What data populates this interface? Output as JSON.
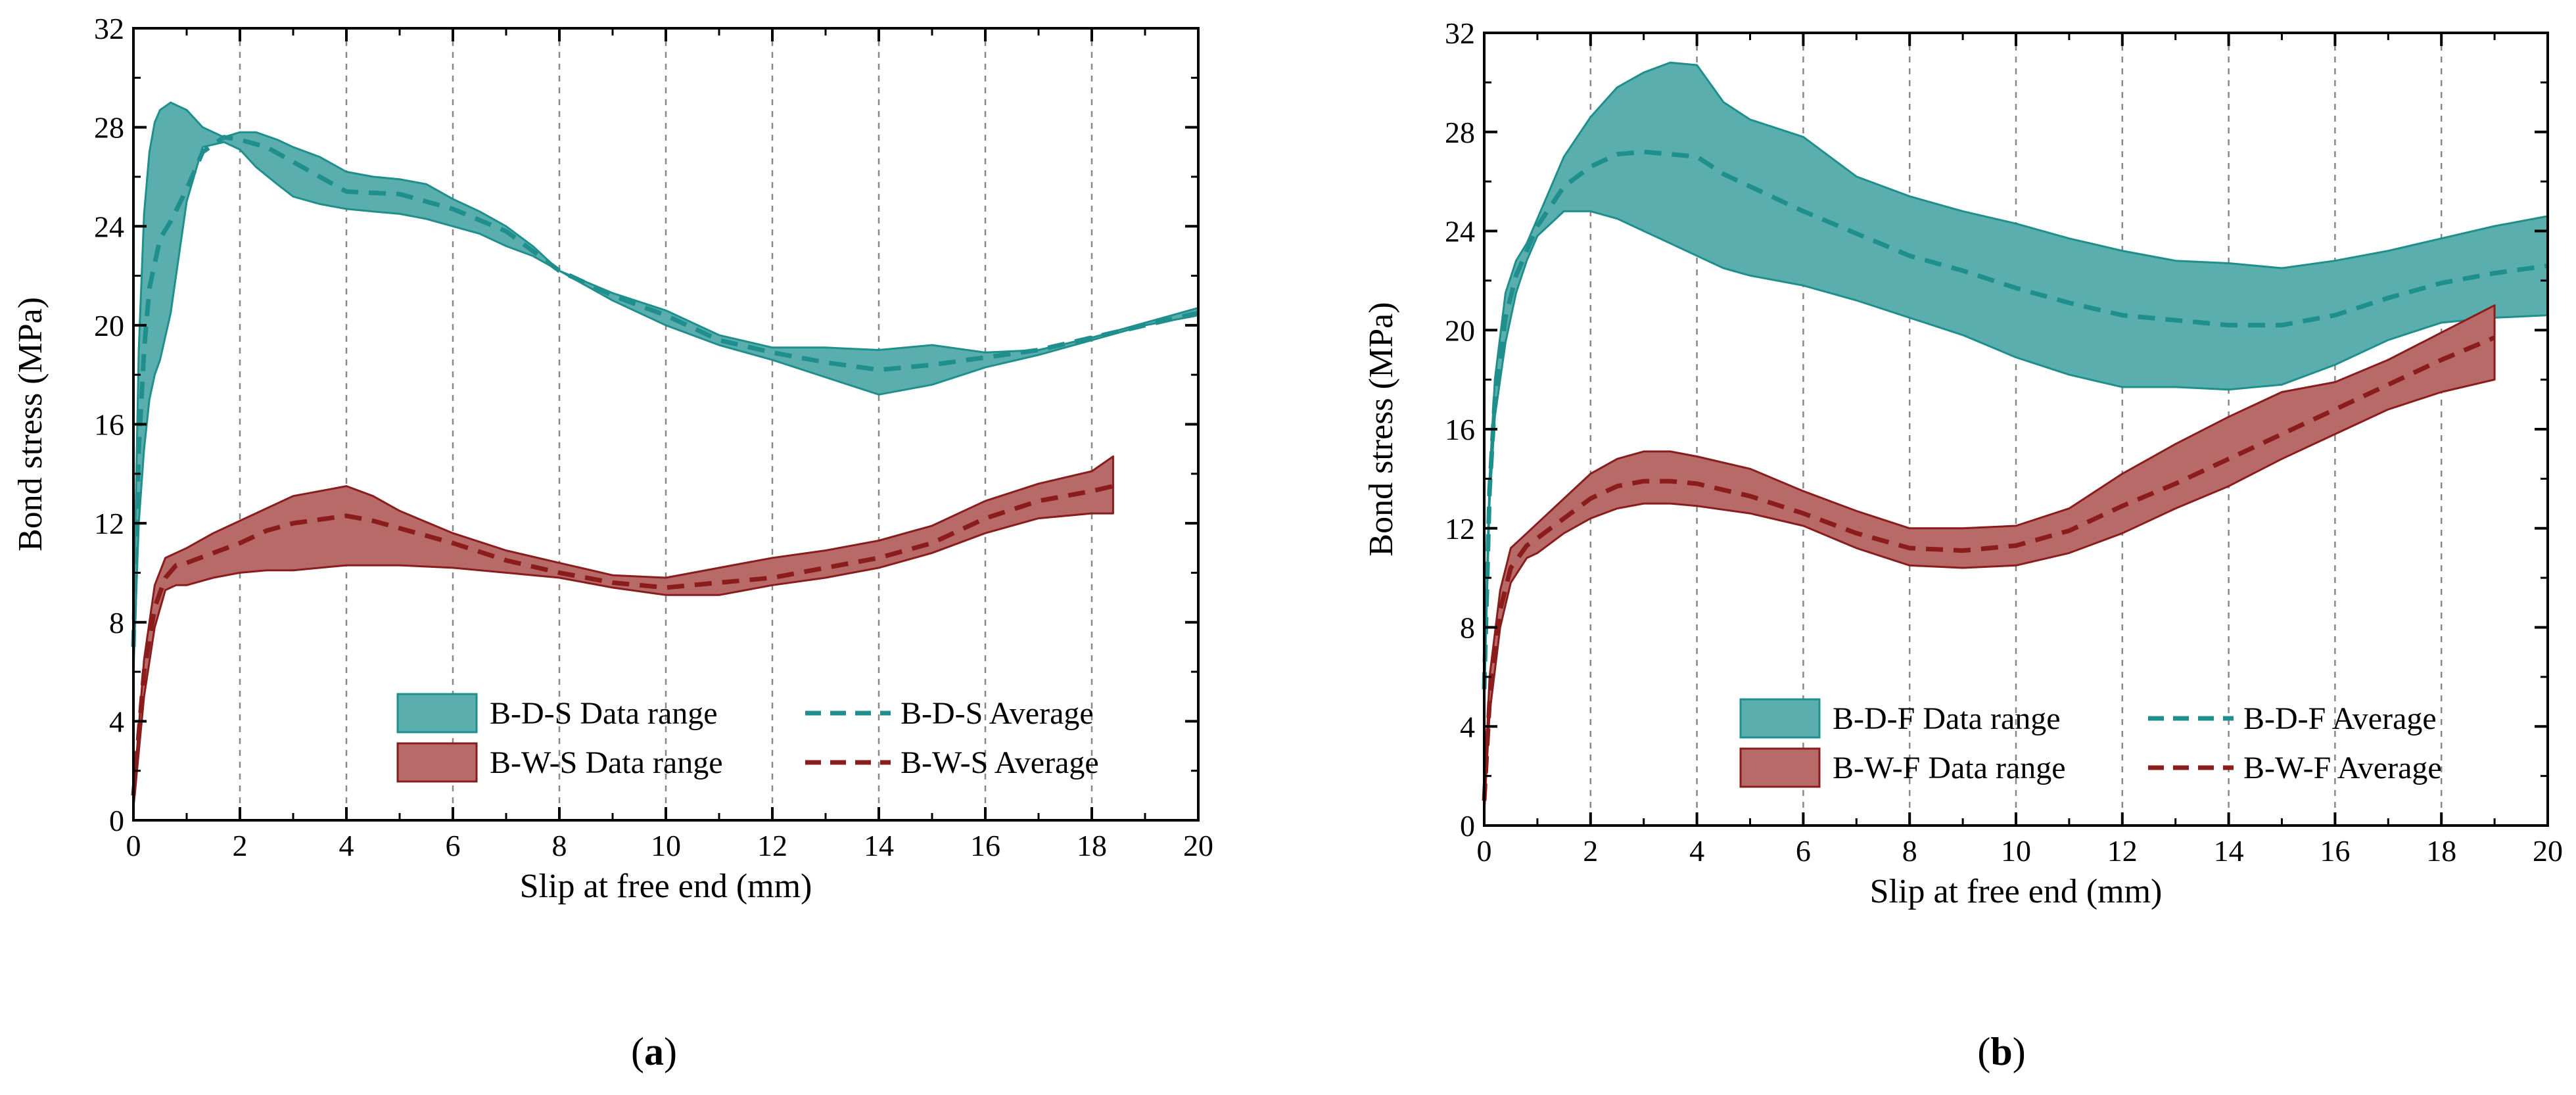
{
  "chart_data": [
    {
      "type": "area",
      "panel_label": "a",
      "xlabel": "Slip at free end (mm)",
      "ylabel": "Bond stress (MPa)",
      "xlim": [
        0,
        20
      ],
      "ylim": [
        0,
        32
      ],
      "xticks": [
        0,
        2,
        4,
        6,
        8,
        10,
        12,
        14,
        16,
        18,
        20
      ],
      "yticks": [
        0,
        4,
        8,
        12,
        16,
        20,
        24,
        28,
        32
      ],
      "grid": "vertical dashed at x = 2..18",
      "legend_position": "lower-right",
      "series": [
        {
          "name": "B-D-S Data range",
          "kind": "range",
          "color": "#5aafae",
          "edge": "#1f8f8d",
          "x": [
            0,
            0.1,
            0.2,
            0.3,
            0.4,
            0.5,
            0.7,
            1.0,
            1.3,
            1.7,
            2.0,
            2.3,
            2.7,
            3.0,
            3.5,
            4.0,
            4.5,
            5.0,
            5.5,
            6.0,
            6.5,
            7.0,
            7.5,
            8.0,
            9.0,
            10.0,
            11.0,
            12.0,
            13.0,
            14.0,
            15.0,
            16.0,
            17.0,
            18.0,
            19.0,
            20.0
          ],
          "upper": [
            8,
            19,
            24.5,
            27,
            28.2,
            28.7,
            29,
            28.7,
            28,
            27.6,
            27.8,
            27.8,
            27.5,
            27.2,
            26.8,
            26.2,
            26.0,
            25.9,
            25.7,
            25.1,
            24.6,
            24.0,
            23.2,
            22.2,
            21.3,
            20.6,
            19.6,
            19.1,
            19.1,
            19.0,
            19.2,
            18.9,
            19.0,
            19.5,
            20.1,
            20.7
          ],
          "lower": [
            6,
            12,
            15,
            17,
            18,
            18.6,
            20.5,
            25,
            27.2,
            27.4,
            27.1,
            26.4,
            25.7,
            25.2,
            24.9,
            24.7,
            24.6,
            24.5,
            24.3,
            24.0,
            23.7,
            23.2,
            22.8,
            22.2,
            21.0,
            20.0,
            19.2,
            18.6,
            17.9,
            17.2,
            17.6,
            18.3,
            18.8,
            19.4,
            20.0,
            20.4
          ]
        },
        {
          "name": "B-D-S Average",
          "kind": "line",
          "color": "#1f8f8d",
          "x": [
            0,
            0.1,
            0.2,
            0.3,
            0.5,
            0.7,
            1.0,
            1.3,
            1.7,
            2.0,
            2.5,
            3.0,
            3.5,
            4.0,
            5.0,
            6.0,
            7.0,
            8.0,
            9.0,
            10.0,
            11.0,
            12.0,
            13.0,
            14.0,
            15.0,
            16.0,
            17.0,
            18.0,
            19.0,
            20.0
          ],
          "y": [
            7,
            15,
            19,
            21.5,
            23.5,
            24.2,
            25.5,
            27.0,
            27.6,
            27.5,
            27.2,
            26.6,
            26.0,
            25.4,
            25.3,
            24.7,
            23.8,
            22.2,
            21.2,
            20.4,
            19.4,
            18.9,
            18.5,
            18.2,
            18.4,
            18.7,
            19.0,
            19.5,
            20.0,
            20.5
          ]
        },
        {
          "name": "B-W-S Data range",
          "kind": "range",
          "color": "#b86a69",
          "edge": "#8b1c1c",
          "x": [
            0,
            0.2,
            0.4,
            0.6,
            0.8,
            1.0,
            1.5,
            2.0,
            2.5,
            3.0,
            3.5,
            4.0,
            4.5,
            5.0,
            6.0,
            7.0,
            8.0,
            9.0,
            10.0,
            11.0,
            12.0,
            13.0,
            14.0,
            15.0,
            16.0,
            17.0,
            18.0,
            18.4
          ],
          "upper": [
            1,
            6.5,
            9.5,
            10.6,
            10.8,
            11,
            11.6,
            12.1,
            12.6,
            13.1,
            13.3,
            13.5,
            13.1,
            12.5,
            11.6,
            10.9,
            10.4,
            9.9,
            9.8,
            10.2,
            10.6,
            10.9,
            11.3,
            11.9,
            12.9,
            13.6,
            14.1,
            14.7
          ],
          "lower": [
            0.5,
            5,
            7.8,
            9.3,
            9.5,
            9.5,
            9.8,
            10.0,
            10.1,
            10.1,
            10.2,
            10.3,
            10.3,
            10.3,
            10.2,
            10.0,
            9.8,
            9.4,
            9.1,
            9.1,
            9.5,
            9.8,
            10.2,
            10.8,
            11.6,
            12.2,
            12.4,
            12.4
          ]
        },
        {
          "name": "B-W-S Average",
          "kind": "line",
          "color": "#8b1c1c",
          "x": [
            0,
            0.2,
            0.4,
            0.6,
            0.8,
            1.0,
            1.5,
            2.0,
            2.5,
            3.0,
            4.0,
            4.5,
            5.0,
            6.0,
            7.0,
            8.0,
            9.0,
            10.0,
            11.0,
            12.0,
            13.0,
            14.0,
            15.0,
            16.0,
            17.0,
            18.0,
            18.4
          ],
          "y": [
            1,
            6,
            8.6,
            9.8,
            10.3,
            10.4,
            10.8,
            11.2,
            11.7,
            12.0,
            12.3,
            12.1,
            11.8,
            11.2,
            10.5,
            10.0,
            9.6,
            9.4,
            9.6,
            9.8,
            10.2,
            10.6,
            11.2,
            12.2,
            12.9,
            13.3,
            13.5
          ]
        }
      ]
    },
    {
      "type": "area",
      "panel_label": "b",
      "xlabel": "Slip at free end (mm)",
      "ylabel": "Bond stress (MPa)",
      "xlim": [
        0,
        20
      ],
      "ylim": [
        0,
        32
      ],
      "xticks": [
        0,
        2,
        4,
        6,
        8,
        10,
        12,
        14,
        16,
        18,
        20
      ],
      "yticks": [
        0,
        4,
        8,
        12,
        16,
        20,
        24,
        28,
        32
      ],
      "grid": "vertical dashed at x = 2..18",
      "legend_position": "lower-right",
      "series": [
        {
          "name": "B-D-F Data range",
          "kind": "range",
          "color": "#5aafae",
          "edge": "#1f8f8d",
          "x": [
            0,
            0.1,
            0.2,
            0.4,
            0.6,
            0.8,
            1.0,
            1.5,
            2.0,
            2.5,
            3.0,
            3.5,
            4.0,
            4.3,
            4.5,
            5.0,
            6.0,
            7.0,
            8.0,
            9.0,
            10.0,
            11.0,
            12.0,
            13.0,
            14.0,
            15.0,
            16.0,
            17.0,
            18.0,
            19.0,
            20.0
          ],
          "upper": [
            6,
            14,
            18,
            21.5,
            22.8,
            23.5,
            24.5,
            27,
            28.6,
            29.8,
            30.4,
            30.8,
            30.7,
            29.8,
            29.2,
            28.5,
            27.8,
            26.2,
            25.4,
            24.8,
            24.3,
            23.7,
            23.2,
            22.8,
            22.7,
            22.5,
            22.8,
            23.2,
            23.7,
            24.2,
            24.6
          ],
          "lower": [
            5,
            13,
            16.5,
            19.5,
            21.5,
            22.8,
            23.8,
            24.8,
            24.8,
            24.5,
            24.0,
            23.5,
            23.0,
            22.7,
            22.5,
            22.2,
            21.8,
            21.2,
            20.5,
            19.8,
            18.9,
            18.2,
            17.7,
            17.7,
            17.6,
            17.8,
            18.6,
            19.6,
            20.3,
            20.5,
            20.6
          ]
        },
        {
          "name": "B-D-F Average",
          "kind": "line",
          "color": "#1f8f8d",
          "x": [
            0,
            0.1,
            0.2,
            0.4,
            0.6,
            0.8,
            1.0,
            1.5,
            2.0,
            2.5,
            3.0,
            3.5,
            4.0,
            4.5,
            5.0,
            6.0,
            7.0,
            8.0,
            9.0,
            10.0,
            11.0,
            12.0,
            13.0,
            14.0,
            15.0,
            16.0,
            17.0,
            18.0,
            19.0,
            20.0
          ],
          "y": [
            5.5,
            13.5,
            17.2,
            20.5,
            22.2,
            23.2,
            24.2,
            25.8,
            26.6,
            27.1,
            27.2,
            27.1,
            27.0,
            26.3,
            25.8,
            24.8,
            23.9,
            23.0,
            22.4,
            21.7,
            21.1,
            20.6,
            20.4,
            20.2,
            20.2,
            20.6,
            21.3,
            21.9,
            22.3,
            22.6
          ]
        },
        {
          "name": "B-W-F Data range",
          "kind": "range",
          "color": "#b86a69",
          "edge": "#8b1c1c",
          "x": [
            0,
            0.1,
            0.3,
            0.5,
            0.8,
            1.0,
            1.5,
            2.0,
            2.5,
            3.0,
            3.5,
            4.0,
            5.0,
            6.0,
            7.0,
            8.0,
            9.0,
            10.0,
            11.0,
            12.0,
            13.0,
            14.0,
            15.0,
            16.0,
            17.0,
            18.0,
            19.0
          ],
          "upper": [
            1,
            6,
            9.5,
            11.2,
            11.8,
            12.2,
            13.2,
            14.2,
            14.8,
            15.1,
            15.1,
            14.9,
            14.4,
            13.5,
            12.7,
            12.0,
            12.0,
            12.1,
            12.8,
            14.2,
            15.4,
            16.5,
            17.5,
            17.9,
            18.8,
            19.9,
            21.0
          ],
          "lower": [
            0.5,
            4.5,
            8,
            9.8,
            10.8,
            11.0,
            11.8,
            12.4,
            12.8,
            13.0,
            13.0,
            12.9,
            12.6,
            12.1,
            11.2,
            10.5,
            10.4,
            10.5,
            11.0,
            11.8,
            12.8,
            13.7,
            14.8,
            15.8,
            16.8,
            17.5,
            18.0
          ]
        },
        {
          "name": "B-W-F Average",
          "kind": "line",
          "color": "#8b1c1c",
          "x": [
            0,
            0.1,
            0.3,
            0.5,
            0.8,
            1.0,
            1.5,
            2.0,
            2.5,
            3.0,
            3.5,
            4.0,
            5.0,
            6.0,
            7.0,
            8.0,
            9.0,
            10.0,
            11.0,
            12.0,
            13.0,
            14.0,
            15.0,
            16.0,
            17.0,
            18.0,
            19.0
          ],
          "y": [
            1,
            5,
            8.7,
            10.4,
            11.3,
            11.6,
            12.4,
            13.2,
            13.7,
            13.9,
            13.9,
            13.8,
            13.3,
            12.6,
            11.8,
            11.2,
            11.1,
            11.3,
            11.9,
            12.9,
            13.8,
            14.8,
            15.8,
            16.8,
            17.8,
            18.8,
            19.7
          ]
        }
      ]
    }
  ]
}
